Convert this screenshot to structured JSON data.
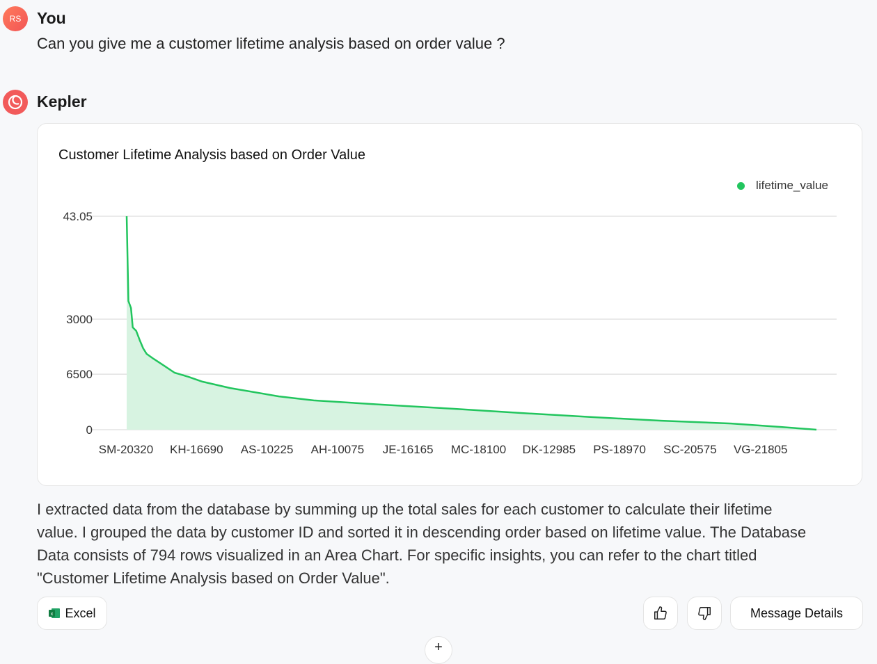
{
  "user": {
    "initials": "RS",
    "name": "You",
    "message": "Can you give me a customer lifetime analysis based on order value ?"
  },
  "assistant": {
    "name": "Kepler"
  },
  "chart_data": {
    "type": "area",
    "title": "Customer Lifetime Analysis based on Order Value",
    "legend": {
      "label": "lifetime_value",
      "placement": "top-right"
    },
    "series_color": "#22c55e",
    "fill_color": "#d7f3e1",
    "row_count": 794,
    "y_ticks": [
      {
        "label": "43.05",
        "level": 1.0
      },
      {
        "label": "3000",
        "level": 0.518
      },
      {
        "label": "6500",
        "level": 0.26
      },
      {
        "label": "0",
        "level": 0.0
      }
    ],
    "x_tick_labels": [
      "SM-20320",
      "KH-16690",
      "AS-10225",
      "AH-10075",
      "JE-16165",
      "MC-18100",
      "DK-12985",
      "PS-18970",
      "SC-20575",
      "VG-21805"
    ],
    "points": [
      [
        0,
        1.0
      ],
      [
        2,
        0.603
      ],
      [
        5,
        0.57
      ],
      [
        7,
        0.479
      ],
      [
        11,
        0.463
      ],
      [
        15,
        0.42
      ],
      [
        19,
        0.381
      ],
      [
        23,
        0.355
      ],
      [
        31,
        0.332
      ],
      [
        43,
        0.3
      ],
      [
        55,
        0.267
      ],
      [
        71,
        0.248
      ],
      [
        87,
        0.225
      ],
      [
        119,
        0.195
      ],
      [
        175,
        0.156
      ],
      [
        215,
        0.137
      ],
      [
        295,
        0.117
      ],
      [
        375,
        0.098
      ],
      [
        455,
        0.078
      ],
      [
        535,
        0.059
      ],
      [
        615,
        0.042
      ],
      [
        695,
        0.029
      ],
      [
        751,
        0.013
      ],
      [
        793,
        0.0
      ]
    ]
  },
  "description": "I extracted data from the database by summing up the total sales for each customer to calculate their lifetime value. I grouped the data by customer ID and sorted it in descending order based on lifetime value. The Database Data consists of 794 rows visualized in an Area Chart. For specific insights, you can refer to the chart titled \"Customer Lifetime Analysis based on Order Value\".",
  "actions": {
    "excel": "Excel",
    "message_details": "Message Details",
    "plus": "+"
  }
}
